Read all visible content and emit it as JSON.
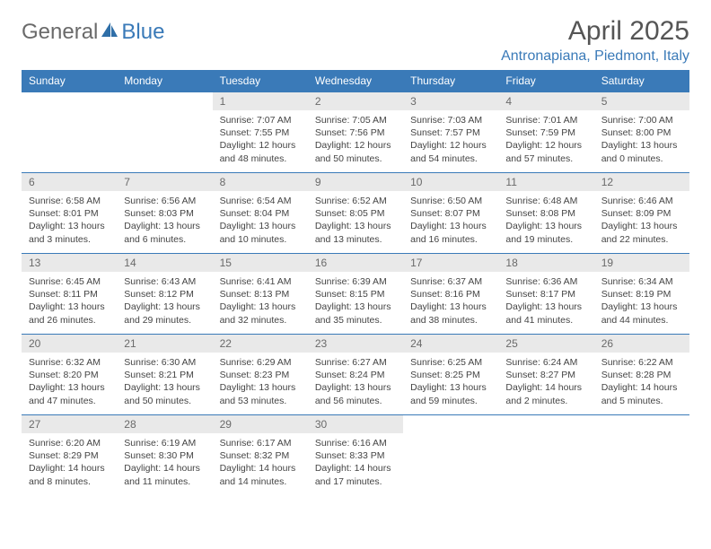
{
  "brand": {
    "part1": "General",
    "part2": "Blue"
  },
  "title": "April 2025",
  "location": "Antronapiana, Piedmont, Italy",
  "colors": {
    "header_bg": "#3a7ab8",
    "header_text": "#ffffff",
    "daynum_bg": "#e9e9e9",
    "daynum_text": "#6a6a6a",
    "border": "#3a7ab8",
    "body_text": "#444444",
    "title_text": "#555555",
    "location_text": "#3a7ab8"
  },
  "typography": {
    "body_fontsize": 10.5,
    "header_fontsize": 12,
    "title_fontsize": 30,
    "location_fontsize": 16,
    "logo_fontsize": 24
  },
  "weekdays": [
    "Sunday",
    "Monday",
    "Tuesday",
    "Wednesday",
    "Thursday",
    "Friday",
    "Saturday"
  ],
  "weeks": [
    [
      null,
      null,
      {
        "n": "1",
        "sr": "Sunrise: 7:07 AM",
        "ss": "Sunset: 7:55 PM",
        "dl": "Daylight: 12 hours and 48 minutes."
      },
      {
        "n": "2",
        "sr": "Sunrise: 7:05 AM",
        "ss": "Sunset: 7:56 PM",
        "dl": "Daylight: 12 hours and 50 minutes."
      },
      {
        "n": "3",
        "sr": "Sunrise: 7:03 AM",
        "ss": "Sunset: 7:57 PM",
        "dl": "Daylight: 12 hours and 54 minutes."
      },
      {
        "n": "4",
        "sr": "Sunrise: 7:01 AM",
        "ss": "Sunset: 7:59 PM",
        "dl": "Daylight: 12 hours and 57 minutes."
      },
      {
        "n": "5",
        "sr": "Sunrise: 7:00 AM",
        "ss": "Sunset: 8:00 PM",
        "dl": "Daylight: 13 hours and 0 minutes."
      }
    ],
    [
      {
        "n": "6",
        "sr": "Sunrise: 6:58 AM",
        "ss": "Sunset: 8:01 PM",
        "dl": "Daylight: 13 hours and 3 minutes."
      },
      {
        "n": "7",
        "sr": "Sunrise: 6:56 AM",
        "ss": "Sunset: 8:03 PM",
        "dl": "Daylight: 13 hours and 6 minutes."
      },
      {
        "n": "8",
        "sr": "Sunrise: 6:54 AM",
        "ss": "Sunset: 8:04 PM",
        "dl": "Daylight: 13 hours and 10 minutes."
      },
      {
        "n": "9",
        "sr": "Sunrise: 6:52 AM",
        "ss": "Sunset: 8:05 PM",
        "dl": "Daylight: 13 hours and 13 minutes."
      },
      {
        "n": "10",
        "sr": "Sunrise: 6:50 AM",
        "ss": "Sunset: 8:07 PM",
        "dl": "Daylight: 13 hours and 16 minutes."
      },
      {
        "n": "11",
        "sr": "Sunrise: 6:48 AM",
        "ss": "Sunset: 8:08 PM",
        "dl": "Daylight: 13 hours and 19 minutes."
      },
      {
        "n": "12",
        "sr": "Sunrise: 6:46 AM",
        "ss": "Sunset: 8:09 PM",
        "dl": "Daylight: 13 hours and 22 minutes."
      }
    ],
    [
      {
        "n": "13",
        "sr": "Sunrise: 6:45 AM",
        "ss": "Sunset: 8:11 PM",
        "dl": "Daylight: 13 hours and 26 minutes."
      },
      {
        "n": "14",
        "sr": "Sunrise: 6:43 AM",
        "ss": "Sunset: 8:12 PM",
        "dl": "Daylight: 13 hours and 29 minutes."
      },
      {
        "n": "15",
        "sr": "Sunrise: 6:41 AM",
        "ss": "Sunset: 8:13 PM",
        "dl": "Daylight: 13 hours and 32 minutes."
      },
      {
        "n": "16",
        "sr": "Sunrise: 6:39 AM",
        "ss": "Sunset: 8:15 PM",
        "dl": "Daylight: 13 hours and 35 minutes."
      },
      {
        "n": "17",
        "sr": "Sunrise: 6:37 AM",
        "ss": "Sunset: 8:16 PM",
        "dl": "Daylight: 13 hours and 38 minutes."
      },
      {
        "n": "18",
        "sr": "Sunrise: 6:36 AM",
        "ss": "Sunset: 8:17 PM",
        "dl": "Daylight: 13 hours and 41 minutes."
      },
      {
        "n": "19",
        "sr": "Sunrise: 6:34 AM",
        "ss": "Sunset: 8:19 PM",
        "dl": "Daylight: 13 hours and 44 minutes."
      }
    ],
    [
      {
        "n": "20",
        "sr": "Sunrise: 6:32 AM",
        "ss": "Sunset: 8:20 PM",
        "dl": "Daylight: 13 hours and 47 minutes."
      },
      {
        "n": "21",
        "sr": "Sunrise: 6:30 AM",
        "ss": "Sunset: 8:21 PM",
        "dl": "Daylight: 13 hours and 50 minutes."
      },
      {
        "n": "22",
        "sr": "Sunrise: 6:29 AM",
        "ss": "Sunset: 8:23 PM",
        "dl": "Daylight: 13 hours and 53 minutes."
      },
      {
        "n": "23",
        "sr": "Sunrise: 6:27 AM",
        "ss": "Sunset: 8:24 PM",
        "dl": "Daylight: 13 hours and 56 minutes."
      },
      {
        "n": "24",
        "sr": "Sunrise: 6:25 AM",
        "ss": "Sunset: 8:25 PM",
        "dl": "Daylight: 13 hours and 59 minutes."
      },
      {
        "n": "25",
        "sr": "Sunrise: 6:24 AM",
        "ss": "Sunset: 8:27 PM",
        "dl": "Daylight: 14 hours and 2 minutes."
      },
      {
        "n": "26",
        "sr": "Sunrise: 6:22 AM",
        "ss": "Sunset: 8:28 PM",
        "dl": "Daylight: 14 hours and 5 minutes."
      }
    ],
    [
      {
        "n": "27",
        "sr": "Sunrise: 6:20 AM",
        "ss": "Sunset: 8:29 PM",
        "dl": "Daylight: 14 hours and 8 minutes."
      },
      {
        "n": "28",
        "sr": "Sunrise: 6:19 AM",
        "ss": "Sunset: 8:30 PM",
        "dl": "Daylight: 14 hours and 11 minutes."
      },
      {
        "n": "29",
        "sr": "Sunrise: 6:17 AM",
        "ss": "Sunset: 8:32 PM",
        "dl": "Daylight: 14 hours and 14 minutes."
      },
      {
        "n": "30",
        "sr": "Sunrise: 6:16 AM",
        "ss": "Sunset: 8:33 PM",
        "dl": "Daylight: 14 hours and 17 minutes."
      },
      null,
      null,
      null
    ]
  ]
}
